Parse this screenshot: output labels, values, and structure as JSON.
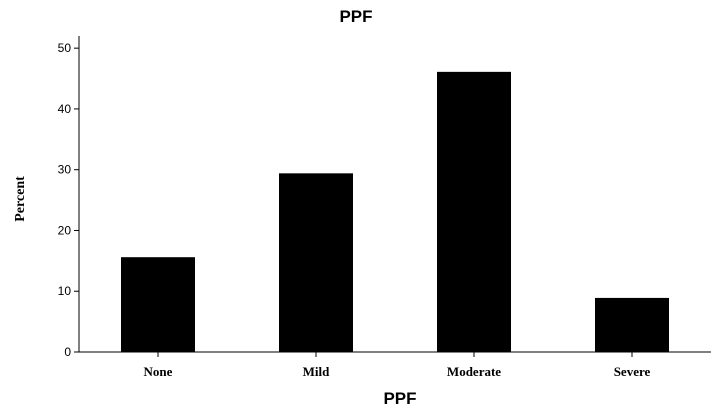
{
  "chart_data": {
    "type": "bar",
    "title": "PPF",
    "xlabel": "PPF",
    "ylabel": "Percent",
    "categories": [
      "None",
      "Mild",
      "Moderate",
      "Severe"
    ],
    "values": [
      15.6,
      29.4,
      46.1,
      8.9
    ],
    "ylim": [
      0,
      52
    ],
    "yticks": [
      0,
      10,
      20,
      30,
      40,
      50
    ],
    "grid": false,
    "legend": "none",
    "bar_color": "#000000"
  }
}
